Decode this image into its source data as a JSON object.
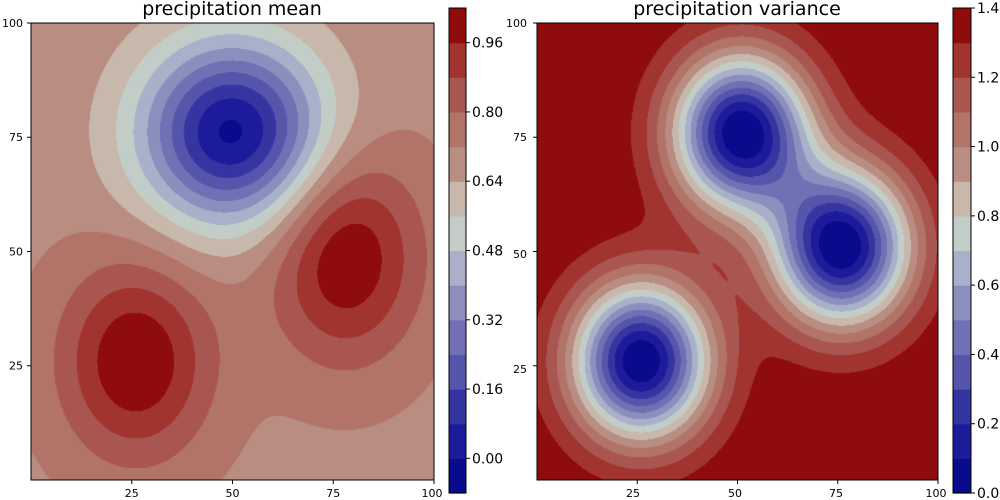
{
  "chart_data": [
    {
      "type": "contourf",
      "title": "precipitation mean",
      "xlabel": "",
      "ylabel": "",
      "xlim": [
        0,
        100
      ],
      "ylim": [
        0,
        100
      ],
      "x_ticks": [
        "25",
        "50",
        "75",
        "100"
      ],
      "y_ticks": [
        "25",
        "50",
        "75",
        "100"
      ],
      "colormap": "seismic-like (navy - blue - grey-white - salmon - dark red)",
      "colorbar": {
        "levels": [
          -0.08,
          0.0,
          0.08,
          0.16,
          0.24,
          0.32,
          0.4,
          0.48,
          0.56,
          0.64,
          0.72,
          0.8,
          0.88,
          0.96,
          1.04
        ],
        "tick_values": [
          0.0,
          0.16,
          0.32,
          0.48,
          0.64,
          0.8,
          0.96
        ],
        "tick_labels": [
          "0.00",
          "0.16",
          "0.32",
          "0.48",
          "0.64",
          "0.80",
          "0.96"
        ]
      },
      "field": {
        "base": 0.7,
        "features": [
          {
            "kind": "low",
            "x": 50,
            "y": 76,
            "amplitude": -0.72,
            "sigma_x": 16,
            "sigma_y": 14
          },
          {
            "kind": "high",
            "x": 26,
            "y": 26,
            "amplitude": 0.34,
            "sigma_x": 13,
            "sigma_y": 15
          },
          {
            "kind": "high",
            "x": 78,
            "y": 49,
            "amplitude": 0.34,
            "sigma_x": 13,
            "sigma_y": 16
          }
        ]
      }
    },
    {
      "type": "contourf",
      "title": "precipitation variance",
      "xlabel": "",
      "ylabel": "",
      "xlim": [
        0,
        100
      ],
      "ylim": [
        0,
        100
      ],
      "x_ticks": [
        "25",
        "50",
        "75",
        "100"
      ],
      "y_ticks": [
        "25",
        "50",
        "75",
        "100"
      ],
      "colormap": "seismic-like (navy - blue - grey-white - salmon - dark red)",
      "colorbar": {
        "levels": [
          0.0,
          0.1,
          0.2,
          0.3,
          0.4,
          0.5,
          0.6,
          0.7,
          0.8,
          0.9,
          1.0,
          1.1,
          1.2,
          1.3,
          1.4
        ],
        "tick_values": [
          0.0,
          0.2,
          0.4,
          0.6,
          0.8,
          1.0,
          1.2,
          1.4
        ],
        "tick_labels": [
          "0.0",
          "0.2",
          "0.4",
          "0.6",
          "0.8",
          "1.0",
          "1.2",
          "1.4"
        ]
      },
      "field": {
        "base": 1.4,
        "features": [
          {
            "kind": "low",
            "x": 51,
            "y": 76,
            "amplitude": -1.4,
            "sigma_x": 12,
            "sigma_y": 12
          },
          {
            "kind": "low",
            "x": 26,
            "y": 26,
            "amplitude": -1.4,
            "sigma_x": 12,
            "sigma_y": 12
          },
          {
            "kind": "low",
            "x": 76,
            "y": 51,
            "amplitude": -1.4,
            "sigma_x": 12,
            "sigma_y": 12
          }
        ]
      }
    }
  ]
}
